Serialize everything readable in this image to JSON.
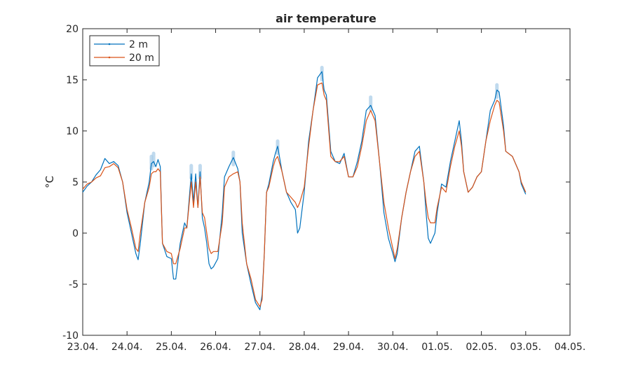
{
  "chart_data": {
    "type": "line",
    "title": "air temperature",
    "xlabel": "",
    "ylabel": "°C",
    "ylim": [
      -10,
      20
    ],
    "yticks": [
      -10,
      -5,
      0,
      5,
      10,
      15,
      20
    ],
    "xlim": [
      0,
      11
    ],
    "xticks": [
      0,
      1,
      2,
      3,
      4,
      5,
      6,
      7,
      8,
      9,
      10,
      11
    ],
    "xticklabels": [
      "23.04.",
      "24.04.",
      "25.04.",
      "26.04.",
      "27.04.",
      "28.04.",
      "29.04.",
      "30.04.",
      "01.05.",
      "02.05.",
      "03.05.",
      "04.05."
    ],
    "x_unit": "days since 23.04.",
    "grid": false,
    "legend_position": "top-left",
    "series": [
      {
        "name": "2 m",
        "color": "#0072BD",
        "points": [
          [
            0.0,
            4.0
          ],
          [
            0.1,
            4.6
          ],
          [
            0.2,
            5.0
          ],
          [
            0.3,
            5.7
          ],
          [
            0.4,
            6.2
          ],
          [
            0.5,
            7.3
          ],
          [
            0.6,
            6.8
          ],
          [
            0.7,
            7.0
          ],
          [
            0.8,
            6.6
          ],
          [
            0.9,
            5.0
          ],
          [
            1.0,
            2.0
          ],
          [
            1.1,
            0.0
          ],
          [
            1.2,
            -2.0
          ],
          [
            1.25,
            -2.6
          ],
          [
            1.3,
            -1.0
          ],
          [
            1.4,
            3.0
          ],
          [
            1.5,
            5.0
          ],
          [
            1.55,
            6.8
          ],
          [
            1.6,
            7.0
          ],
          [
            1.65,
            6.5
          ],
          [
            1.7,
            7.2
          ],
          [
            1.75,
            6.5
          ],
          [
            1.8,
            -1.0
          ],
          [
            1.9,
            -2.3
          ],
          [
            2.0,
            -2.5
          ],
          [
            2.05,
            -4.5
          ],
          [
            2.1,
            -4.5
          ],
          [
            2.2,
            -1.0
          ],
          [
            2.3,
            1.0
          ],
          [
            2.35,
            0.5
          ],
          [
            2.45,
            5.8
          ],
          [
            2.5,
            3.0
          ],
          [
            2.55,
            5.8
          ],
          [
            2.6,
            2.5
          ],
          [
            2.65,
            6.0
          ],
          [
            2.7,
            1.5
          ],
          [
            2.75,
            0.5
          ],
          [
            2.8,
            -1.0
          ],
          [
            2.85,
            -3.0
          ],
          [
            2.9,
            -3.5
          ],
          [
            2.95,
            -3.3
          ],
          [
            3.05,
            -2.5
          ],
          [
            3.15,
            2.0
          ],
          [
            3.2,
            5.5
          ],
          [
            3.3,
            6.5
          ],
          [
            3.4,
            7.4
          ],
          [
            3.5,
            6.3
          ],
          [
            3.55,
            5.0
          ],
          [
            3.6,
            0.0
          ],
          [
            3.7,
            -3.0
          ],
          [
            3.8,
            -5.0
          ],
          [
            3.9,
            -6.8
          ],
          [
            4.0,
            -7.5
          ],
          [
            4.05,
            -6.0
          ],
          [
            4.1,
            -2.0
          ],
          [
            4.15,
            4.0
          ],
          [
            4.2,
            4.8
          ],
          [
            4.3,
            7.0
          ],
          [
            4.35,
            7.8
          ],
          [
            4.4,
            8.5
          ],
          [
            4.5,
            6.0
          ],
          [
            4.6,
            4.0
          ],
          [
            4.7,
            3.0
          ],
          [
            4.8,
            2.3
          ],
          [
            4.85,
            0.0
          ],
          [
            4.9,
            0.5
          ],
          [
            5.0,
            4.0
          ],
          [
            5.1,
            9.0
          ],
          [
            5.2,
            12.0
          ],
          [
            5.3,
            15.2
          ],
          [
            5.4,
            15.8
          ],
          [
            5.45,
            14.0
          ],
          [
            5.5,
            13.5
          ],
          [
            5.6,
            8.0
          ],
          [
            5.7,
            7.0
          ],
          [
            5.8,
            6.8
          ],
          [
            5.9,
            7.8
          ],
          [
            6.0,
            5.5
          ],
          [
            6.1,
            5.5
          ],
          [
            6.2,
            7.0
          ],
          [
            6.3,
            9.0
          ],
          [
            6.4,
            12.0
          ],
          [
            6.5,
            12.5
          ],
          [
            6.6,
            11.5
          ],
          [
            6.7,
            7.0
          ],
          [
            6.8,
            2.0
          ],
          [
            6.9,
            -0.5
          ],
          [
            7.0,
            -2.0
          ],
          [
            7.05,
            -2.8
          ],
          [
            7.1,
            -2.0
          ],
          [
            7.2,
            1.5
          ],
          [
            7.3,
            4.0
          ],
          [
            7.4,
            6.0
          ],
          [
            7.5,
            8.0
          ],
          [
            7.6,
            8.5
          ],
          [
            7.7,
            5.0
          ],
          [
            7.75,
            2.0
          ],
          [
            7.8,
            -0.5
          ],
          [
            7.85,
            -1.0
          ],
          [
            7.95,
            0.0
          ],
          [
            8.0,
            2.0
          ],
          [
            8.1,
            4.8
          ],
          [
            8.2,
            4.5
          ],
          [
            8.3,
            7.0
          ],
          [
            8.4,
            9.0
          ],
          [
            8.5,
            11.0
          ],
          [
            8.55,
            9.0
          ],
          [
            8.6,
            6.0
          ],
          [
            8.7,
            4.0
          ],
          [
            8.8,
            4.5
          ],
          [
            8.9,
            5.5
          ],
          [
            9.0,
            6.0
          ],
          [
            9.1,
            9.0
          ],
          [
            9.2,
            12.0
          ],
          [
            9.3,
            13.0
          ],
          [
            9.35,
            14.0
          ],
          [
            9.4,
            13.8
          ],
          [
            9.5,
            10.5
          ],
          [
            9.55,
            8.0
          ],
          [
            9.7,
            7.5
          ],
          [
            9.85,
            6.0
          ],
          [
            9.9,
            4.8
          ],
          [
            10.0,
            3.8
          ]
        ],
        "band": [
          [
            1.55,
            7.5
          ],
          [
            1.6,
            7.8
          ],
          [
            2.45,
            6.6
          ],
          [
            2.65,
            6.6
          ],
          [
            3.4,
            7.9
          ],
          [
            4.4,
            9.0
          ],
          [
            5.4,
            16.2
          ],
          [
            6.5,
            13.3
          ],
          [
            9.35,
            14.5
          ]
        ]
      },
      {
        "name": "20 m",
        "color": "#D95319",
        "points": [
          [
            0.0,
            4.3
          ],
          [
            0.1,
            4.8
          ],
          [
            0.2,
            5.0
          ],
          [
            0.3,
            5.4
          ],
          [
            0.4,
            5.6
          ],
          [
            0.5,
            6.4
          ],
          [
            0.6,
            6.5
          ],
          [
            0.7,
            6.8
          ],
          [
            0.8,
            6.4
          ],
          [
            0.9,
            5.0
          ],
          [
            1.0,
            2.3
          ],
          [
            1.1,
            0.5
          ],
          [
            1.2,
            -1.5
          ],
          [
            1.25,
            -1.8
          ],
          [
            1.3,
            0.0
          ],
          [
            1.4,
            3.0
          ],
          [
            1.5,
            4.5
          ],
          [
            1.55,
            5.8
          ],
          [
            1.6,
            6.0
          ],
          [
            1.65,
            6.0
          ],
          [
            1.7,
            6.3
          ],
          [
            1.75,
            6.0
          ],
          [
            1.8,
            -1.0
          ],
          [
            1.9,
            -1.8
          ],
          [
            2.0,
            -2.0
          ],
          [
            2.05,
            -3.0
          ],
          [
            2.1,
            -3.0
          ],
          [
            2.2,
            -1.5
          ],
          [
            2.3,
            0.5
          ],
          [
            2.35,
            0.5
          ],
          [
            2.45,
            5.0
          ],
          [
            2.5,
            2.5
          ],
          [
            2.55,
            5.0
          ],
          [
            2.6,
            2.5
          ],
          [
            2.65,
            5.5
          ],
          [
            2.7,
            2.0
          ],
          [
            2.75,
            1.5
          ],
          [
            2.8,
            0.0
          ],
          [
            2.85,
            -1.5
          ],
          [
            2.9,
            -2.0
          ],
          [
            2.95,
            -1.8
          ],
          [
            3.05,
            -1.8
          ],
          [
            3.15,
            1.0
          ],
          [
            3.2,
            4.5
          ],
          [
            3.3,
            5.5
          ],
          [
            3.4,
            5.8
          ],
          [
            3.5,
            6.0
          ],
          [
            3.55,
            5.0
          ],
          [
            3.6,
            1.0
          ],
          [
            3.7,
            -3.0
          ],
          [
            3.8,
            -4.5
          ],
          [
            3.9,
            -6.5
          ],
          [
            4.0,
            -7.2
          ],
          [
            4.05,
            -6.5
          ],
          [
            4.1,
            -2.0
          ],
          [
            4.15,
            4.0
          ],
          [
            4.2,
            4.5
          ],
          [
            4.3,
            6.5
          ],
          [
            4.35,
            7.2
          ],
          [
            4.4,
            7.5
          ],
          [
            4.5,
            6.0
          ],
          [
            4.6,
            4.0
          ],
          [
            4.7,
            3.5
          ],
          [
            4.8,
            3.0
          ],
          [
            4.85,
            2.5
          ],
          [
            4.9,
            3.0
          ],
          [
            5.0,
            4.5
          ],
          [
            5.1,
            8.5
          ],
          [
            5.2,
            12.0
          ],
          [
            5.3,
            14.5
          ],
          [
            5.4,
            14.7
          ],
          [
            5.45,
            13.5
          ],
          [
            5.5,
            13.0
          ],
          [
            5.6,
            7.5
          ],
          [
            5.7,
            7.0
          ],
          [
            5.8,
            7.0
          ],
          [
            5.9,
            7.5
          ],
          [
            6.0,
            5.5
          ],
          [
            6.1,
            5.5
          ],
          [
            6.2,
            6.5
          ],
          [
            6.3,
            8.5
          ],
          [
            6.4,
            11.0
          ],
          [
            6.5,
            12.0
          ],
          [
            6.6,
            11.0
          ],
          [
            6.7,
            7.0
          ],
          [
            6.8,
            3.0
          ],
          [
            6.9,
            0.5
          ],
          [
            7.0,
            -1.5
          ],
          [
            7.05,
            -2.5
          ],
          [
            7.1,
            -1.5
          ],
          [
            7.2,
            1.5
          ],
          [
            7.3,
            4.0
          ],
          [
            7.4,
            6.0
          ],
          [
            7.5,
            7.5
          ],
          [
            7.6,
            8.0
          ],
          [
            7.7,
            5.0
          ],
          [
            7.75,
            3.0
          ],
          [
            7.8,
            1.5
          ],
          [
            7.85,
            1.0
          ],
          [
            7.95,
            1.0
          ],
          [
            8.0,
            2.5
          ],
          [
            8.1,
            4.5
          ],
          [
            8.2,
            4.0
          ],
          [
            8.3,
            6.5
          ],
          [
            8.4,
            8.5
          ],
          [
            8.5,
            10.0
          ],
          [
            8.55,
            8.5
          ],
          [
            8.6,
            6.0
          ],
          [
            8.7,
            4.0
          ],
          [
            8.8,
            4.5
          ],
          [
            8.9,
            5.5
          ],
          [
            9.0,
            6.0
          ],
          [
            9.1,
            9.0
          ],
          [
            9.2,
            11.0
          ],
          [
            9.3,
            12.5
          ],
          [
            9.35,
            13.0
          ],
          [
            9.4,
            12.8
          ],
          [
            9.5,
            10.0
          ],
          [
            9.55,
            8.0
          ],
          [
            9.7,
            7.5
          ],
          [
            9.85,
            6.0
          ],
          [
            9.9,
            5.0
          ],
          [
            10.0,
            4.0
          ]
        ]
      }
    ]
  }
}
